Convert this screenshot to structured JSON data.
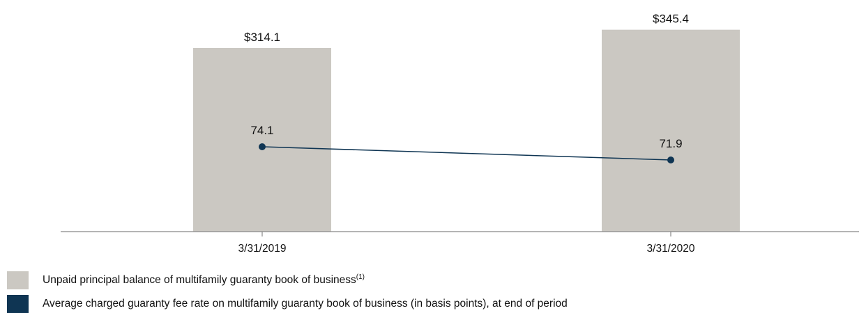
{
  "chart_data": {
    "type": "bar",
    "categories": [
      "3/31/2019",
      "3/31/2020"
    ],
    "bar_series": {
      "name": "Unpaid principal balance of multifamily guaranty book of business",
      "name_superscript": "(1)",
      "values": [
        314.1,
        345.4
      ],
      "labels": [
        "$314.1",
        "$345.4"
      ],
      "color": "#cbc8c2"
    },
    "line_series": {
      "name": "Average charged guaranty fee rate on multifamily guaranty book of business (in basis points), at end of period",
      "values": [
        74.1,
        71.9
      ],
      "labels": [
        "74.1",
        "71.9"
      ],
      "color": "#0f3553"
    },
    "title": "",
    "xlabel": "",
    "ylabel": "",
    "grid": false,
    "legend_position": "bottom-left"
  }
}
